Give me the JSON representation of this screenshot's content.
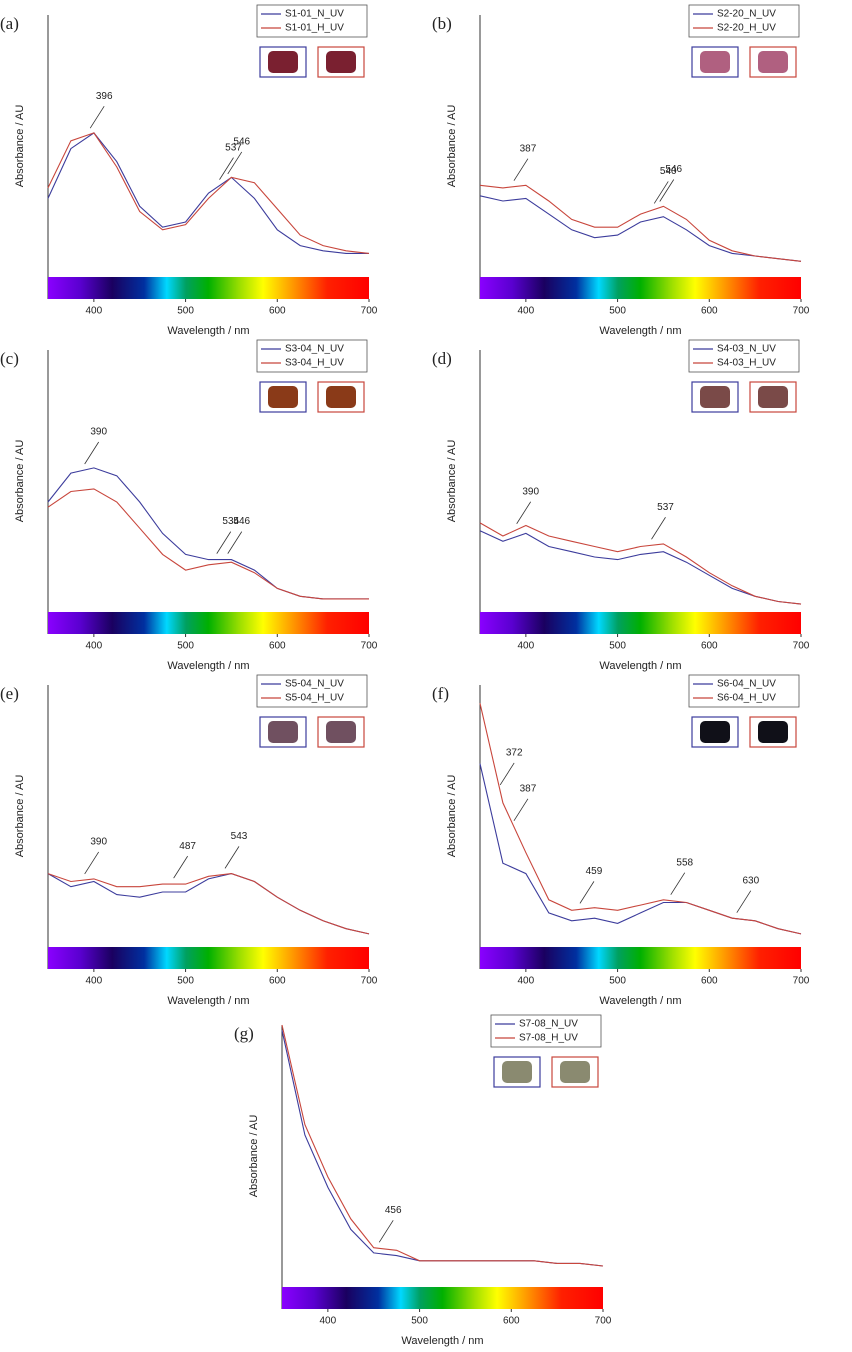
{
  "chart_data": [
    {
      "type": "line",
      "panel": "(a)",
      "x_label": "Wavelength / nm",
      "y_label": "Absorbance / AU",
      "x": [
        350,
        375,
        400,
        425,
        450,
        475,
        500,
        525,
        550,
        575,
        600,
        625,
        650,
        675,
        700
      ],
      "xlim": [
        350,
        700
      ],
      "xticks": [
        400,
        500,
        600,
        700
      ],
      "ylim": [
        0,
        1
      ],
      "annotations": [
        396,
        537,
        546
      ],
      "swatch": "#7a2030",
      "series": [
        {
          "name": "S1-01_N_UV",
          "color": "#3c3c9c",
          "values": [
            0.3,
            0.49,
            0.55,
            0.44,
            0.27,
            0.19,
            0.21,
            0.32,
            0.38,
            0.3,
            0.18,
            0.12,
            0.1,
            0.09,
            0.09
          ]
        },
        {
          "name": "S1-01_H_UV",
          "color": "#c8463c",
          "values": [
            0.34,
            0.52,
            0.55,
            0.42,
            0.25,
            0.18,
            0.2,
            0.3,
            0.38,
            0.36,
            0.26,
            0.16,
            0.12,
            0.1,
            0.09
          ]
        }
      ]
    },
    {
      "type": "line",
      "panel": "(b)",
      "x_label": "Wavelength / nm",
      "y_label": "Absorbance / AU",
      "x": [
        350,
        375,
        400,
        425,
        450,
        475,
        500,
        525,
        550,
        575,
        600,
        625,
        650,
        675,
        700
      ],
      "xlim": [
        350,
        700
      ],
      "xticks": [
        400,
        500,
        600,
        700
      ],
      "ylim": [
        0,
        1
      ],
      "annotations": [
        387,
        540,
        546
      ],
      "swatch": "#b06080",
      "series": [
        {
          "name": "S2-20_N_UV",
          "color": "#3c3c9c",
          "values": [
            0.31,
            0.29,
            0.3,
            0.24,
            0.18,
            0.15,
            0.16,
            0.21,
            0.23,
            0.18,
            0.12,
            0.09,
            0.08,
            0.07,
            0.06
          ]
        },
        {
          "name": "S2-20_H_UV",
          "color": "#c8463c",
          "values": [
            0.35,
            0.34,
            0.35,
            0.29,
            0.22,
            0.19,
            0.19,
            0.24,
            0.27,
            0.22,
            0.14,
            0.1,
            0.08,
            0.07,
            0.06
          ]
        }
      ]
    },
    {
      "type": "line",
      "panel": "(c)",
      "x_label": "Wavelength / nm",
      "y_label": "Absorbance / AU",
      "x": [
        350,
        375,
        400,
        425,
        450,
        475,
        500,
        525,
        550,
        575,
        600,
        625,
        650,
        675,
        700
      ],
      "xlim": [
        350,
        700
      ],
      "xticks": [
        400,
        500,
        600,
        700
      ],
      "ylim": [
        0,
        1
      ],
      "annotations": [
        390,
        534,
        546
      ],
      "swatch": "#8a3a18",
      "series": [
        {
          "name": "S3-04_N_UV",
          "color": "#3c3c9c",
          "values": [
            0.42,
            0.53,
            0.55,
            0.52,
            0.42,
            0.3,
            0.22,
            0.2,
            0.2,
            0.16,
            0.09,
            0.06,
            0.05,
            0.05,
            0.05
          ]
        },
        {
          "name": "S3-04_H_UV",
          "color": "#c8463c",
          "values": [
            0.4,
            0.46,
            0.47,
            0.42,
            0.32,
            0.22,
            0.16,
            0.18,
            0.19,
            0.15,
            0.09,
            0.06,
            0.05,
            0.05,
            0.05
          ]
        }
      ]
    },
    {
      "type": "line",
      "panel": "(d)",
      "x_label": "Wavelength / nm",
      "y_label": "Absorbance / AU",
      "x": [
        350,
        375,
        400,
        425,
        450,
        475,
        500,
        525,
        550,
        575,
        600,
        625,
        650,
        675,
        700
      ],
      "xlim": [
        350,
        700
      ],
      "xticks": [
        400,
        500,
        600,
        700
      ],
      "ylim": [
        0,
        1
      ],
      "annotations": [
        390,
        537
      ],
      "swatch": "#7a4a48",
      "series": [
        {
          "name": "S4-03_N_UV",
          "color": "#3c3c9c",
          "values": [
            0.31,
            0.27,
            0.3,
            0.25,
            0.23,
            0.21,
            0.2,
            0.22,
            0.23,
            0.19,
            0.14,
            0.09,
            0.06,
            0.04,
            0.03
          ]
        },
        {
          "name": "S4-03_H_UV",
          "color": "#c8463c",
          "values": [
            0.34,
            0.29,
            0.33,
            0.29,
            0.27,
            0.25,
            0.23,
            0.25,
            0.26,
            0.21,
            0.15,
            0.1,
            0.06,
            0.04,
            0.03
          ]
        }
      ]
    },
    {
      "type": "line",
      "panel": "(e)",
      "x_label": "Wavelength / nm",
      "y_label": "Absorbance / AU",
      "x": [
        350,
        375,
        400,
        425,
        450,
        475,
        500,
        525,
        550,
        575,
        600,
        625,
        650,
        675,
        700
      ],
      "xlim": [
        350,
        700
      ],
      "xticks": [
        400,
        500,
        600,
        700
      ],
      "ylim": [
        0,
        1
      ],
      "annotations": [
        390,
        487,
        543
      ],
      "swatch": "#705060",
      "series": [
        {
          "name": "S5-04_N_UV",
          "color": "#3c3c9c",
          "values": [
            0.28,
            0.23,
            0.25,
            0.2,
            0.19,
            0.21,
            0.21,
            0.26,
            0.28,
            0.25,
            0.19,
            0.14,
            0.1,
            0.07,
            0.05
          ]
        },
        {
          "name": "S5-04_H_UV",
          "color": "#c8463c",
          "values": [
            0.28,
            0.25,
            0.26,
            0.23,
            0.23,
            0.24,
            0.24,
            0.27,
            0.28,
            0.25,
            0.19,
            0.14,
            0.1,
            0.07,
            0.05
          ]
        }
      ]
    },
    {
      "type": "line",
      "panel": "(f)",
      "x_label": "Wavelength / nm",
      "y_label": "Absorbance / AU",
      "x": [
        350,
        375,
        400,
        425,
        450,
        475,
        500,
        525,
        550,
        575,
        600,
        625,
        650,
        675,
        700
      ],
      "xlim": [
        350,
        700
      ],
      "xticks": [
        400,
        500,
        600,
        700
      ],
      "ylim": [
        0,
        1
      ],
      "annotations": [
        372,
        387,
        459,
        558,
        630
      ],
      "swatch": "#101018",
      "series": [
        {
          "name": "S6-04_N_UV",
          "color": "#3c3c9c",
          "values": [
            0.7,
            0.32,
            0.28,
            0.13,
            0.1,
            0.11,
            0.09,
            0.13,
            0.17,
            0.17,
            0.14,
            0.11,
            0.1,
            0.07,
            0.05
          ]
        },
        {
          "name": "S6-04_H_UV",
          "color": "#c8463c",
          "values": [
            0.93,
            0.55,
            0.36,
            0.18,
            0.14,
            0.15,
            0.14,
            0.16,
            0.18,
            0.17,
            0.14,
            0.11,
            0.1,
            0.07,
            0.05
          ]
        }
      ]
    },
    {
      "type": "line",
      "panel": "(g)",
      "x_label": "Wavelength / nm",
      "y_label": "Absorbance / AU",
      "x": [
        350,
        375,
        400,
        425,
        450,
        475,
        500,
        525,
        550,
        575,
        600,
        625,
        650,
        675,
        700
      ],
      "xlim": [
        350,
        700
      ],
      "xticks": [
        400,
        500,
        600,
        700
      ],
      "ylim": [
        0,
        1
      ],
      "annotations": [
        456
      ],
      "swatch": "#8a8a70",
      "series": [
        {
          "name": "S7-08_N_UV",
          "color": "#3c3c9c",
          "values": [
            0.98,
            0.58,
            0.38,
            0.22,
            0.13,
            0.12,
            0.1,
            0.1,
            0.1,
            0.1,
            0.1,
            0.1,
            0.09,
            0.09,
            0.08
          ]
        },
        {
          "name": "S7-08_H_UV",
          "color": "#c8463c",
          "values": [
            1.0,
            0.62,
            0.42,
            0.26,
            0.15,
            0.14,
            0.1,
            0.1,
            0.1,
            0.1,
            0.1,
            0.1,
            0.09,
            0.09,
            0.08
          ]
        }
      ]
    }
  ]
}
